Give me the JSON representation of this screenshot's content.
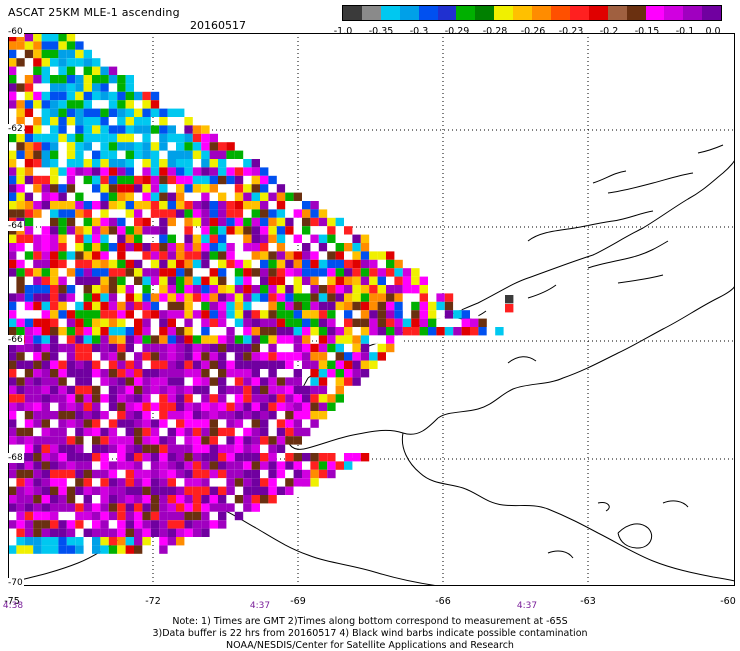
{
  "header": {
    "title": "ASCAT 25KM MLE-1 ascending",
    "date": "20160517"
  },
  "colorbar": {
    "colors": [
      "#3a3a3a",
      "#8a8a8a",
      "#00c8f0",
      "#00a0e8",
      "#0050f0",
      "#2030d0",
      "#00b000",
      "#008000",
      "#f0f000",
      "#ffc000",
      "#ff8c00",
      "#ff5000",
      "#ff2020",
      "#e00000",
      "#a06040",
      "#6a3010",
      "#ff00ff",
      "#d000e0",
      "#a000c0",
      "#7000a0"
    ],
    "labels": [
      "-1.0",
      "-0.35",
      "-0.3",
      "-0.29",
      "-0.28",
      "-0.26",
      "-0.23",
      "-0.2",
      "-0.15",
      "-0.1",
      "0.0"
    ]
  },
  "axes": {
    "lat_labels": [
      "-60",
      "-62",
      "-64",
      "-66",
      "-68",
      "-70"
    ],
    "lon_labels": [
      "-75",
      "-72",
      "-69",
      "-66",
      "-63",
      "-60"
    ],
    "time_labels": [
      "4:38",
      "4:37",
      "4:37"
    ]
  },
  "notes": {
    "line1": "Note: 1) Times are GMT 2)Times along bottom correspond to measurement at -65S",
    "line2": "3)Data buffer is 22 hrs from 20160517 4) Black wind barbs indicate possible contamination",
    "line3": "NOAA/NESDIS/Center for Satellite Applications and Research"
  }
}
